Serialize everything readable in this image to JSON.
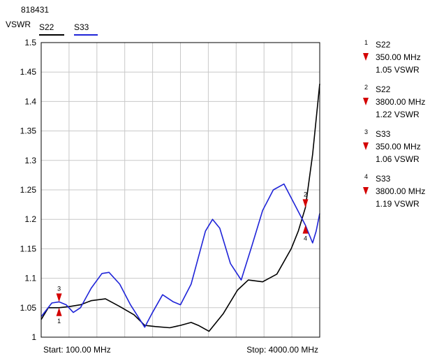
{
  "chart_data": {
    "type": "line",
    "title": "818431",
    "ylabel": "VSWR",
    "x_start_label": "Start: 100.00 MHz",
    "x_stop_label": "Stop: 4000.00 MHz",
    "xlim": [
      100,
      4000
    ],
    "ylim": [
      1,
      1.5
    ],
    "y_ticks": [
      1,
      1.05,
      1.1,
      1.15,
      1.2,
      1.25,
      1.3,
      1.35,
      1.4,
      1.45,
      1.5
    ],
    "y_tick_labels": [
      "1",
      "1.05",
      "1.1",
      "1.15",
      "1.2",
      "1.25",
      "1.3",
      "1.35",
      "1.4",
      "1.45",
      "1.5"
    ],
    "grid": true,
    "legend_position": "top-left",
    "series": [
      {
        "name": "S22",
        "color": "#000000",
        "points": [
          [
            100,
            1.03
          ],
          [
            200,
            1.05
          ],
          [
            350,
            1.05
          ],
          [
            500,
            1.052
          ],
          [
            650,
            1.055
          ],
          [
            800,
            1.062
          ],
          [
            1000,
            1.065
          ],
          [
            1200,
            1.052
          ],
          [
            1400,
            1.038
          ],
          [
            1550,
            1.02
          ],
          [
            1700,
            1.018
          ],
          [
            1900,
            1.016
          ],
          [
            2050,
            1.02
          ],
          [
            2200,
            1.025
          ],
          [
            2300,
            1.02
          ],
          [
            2450,
            1.01
          ],
          [
            2650,
            1.04
          ],
          [
            2850,
            1.08
          ],
          [
            3000,
            1.097
          ],
          [
            3200,
            1.094
          ],
          [
            3400,
            1.107
          ],
          [
            3600,
            1.15
          ],
          [
            3700,
            1.18
          ],
          [
            3800,
            1.22
          ],
          [
            3900,
            1.31
          ],
          [
            4000,
            1.43
          ]
        ]
      },
      {
        "name": "S33",
        "color": "#1f24d8",
        "points": [
          [
            100,
            1.035
          ],
          [
            250,
            1.058
          ],
          [
            350,
            1.06
          ],
          [
            450,
            1.055
          ],
          [
            550,
            1.042
          ],
          [
            650,
            1.05
          ],
          [
            800,
            1.083
          ],
          [
            950,
            1.108
          ],
          [
            1050,
            1.11
          ],
          [
            1200,
            1.09
          ],
          [
            1350,
            1.055
          ],
          [
            1550,
            1.017
          ],
          [
            1650,
            1.04
          ],
          [
            1800,
            1.072
          ],
          [
            1950,
            1.06
          ],
          [
            2050,
            1.055
          ],
          [
            2200,
            1.09
          ],
          [
            2400,
            1.18
          ],
          [
            2500,
            1.2
          ],
          [
            2600,
            1.185
          ],
          [
            2750,
            1.125
          ],
          [
            2900,
            1.097
          ],
          [
            3050,
            1.155
          ],
          [
            3200,
            1.215
          ],
          [
            3350,
            1.25
          ],
          [
            3500,
            1.26
          ],
          [
            3650,
            1.225
          ],
          [
            3800,
            1.19
          ],
          [
            3900,
            1.16
          ],
          [
            3950,
            1.18
          ],
          [
            4000,
            1.21
          ]
        ]
      }
    ],
    "markers": [
      {
        "id": "1",
        "trace": "S22",
        "x": 350,
        "y": 1.05,
        "freq_label": "350.00 MHz",
        "value_label": "1.05 VSWR",
        "color": "#d40000"
      },
      {
        "id": "2",
        "trace": "S22",
        "x": 3800,
        "y": 1.22,
        "freq_label": "3800.00 MHz",
        "value_label": "1.22 VSWR",
        "color": "#d40000"
      },
      {
        "id": "3",
        "trace": "S33",
        "x": 350,
        "y": 1.06,
        "freq_label": "350.00 MHz",
        "value_label": "1.06 VSWR",
        "color": "#d40000"
      },
      {
        "id": "4",
        "trace": "S33",
        "x": 3800,
        "y": 1.19,
        "freq_label": "3800.00 MHz",
        "value_label": "1.19 VSWR",
        "color": "#d40000"
      }
    ]
  }
}
